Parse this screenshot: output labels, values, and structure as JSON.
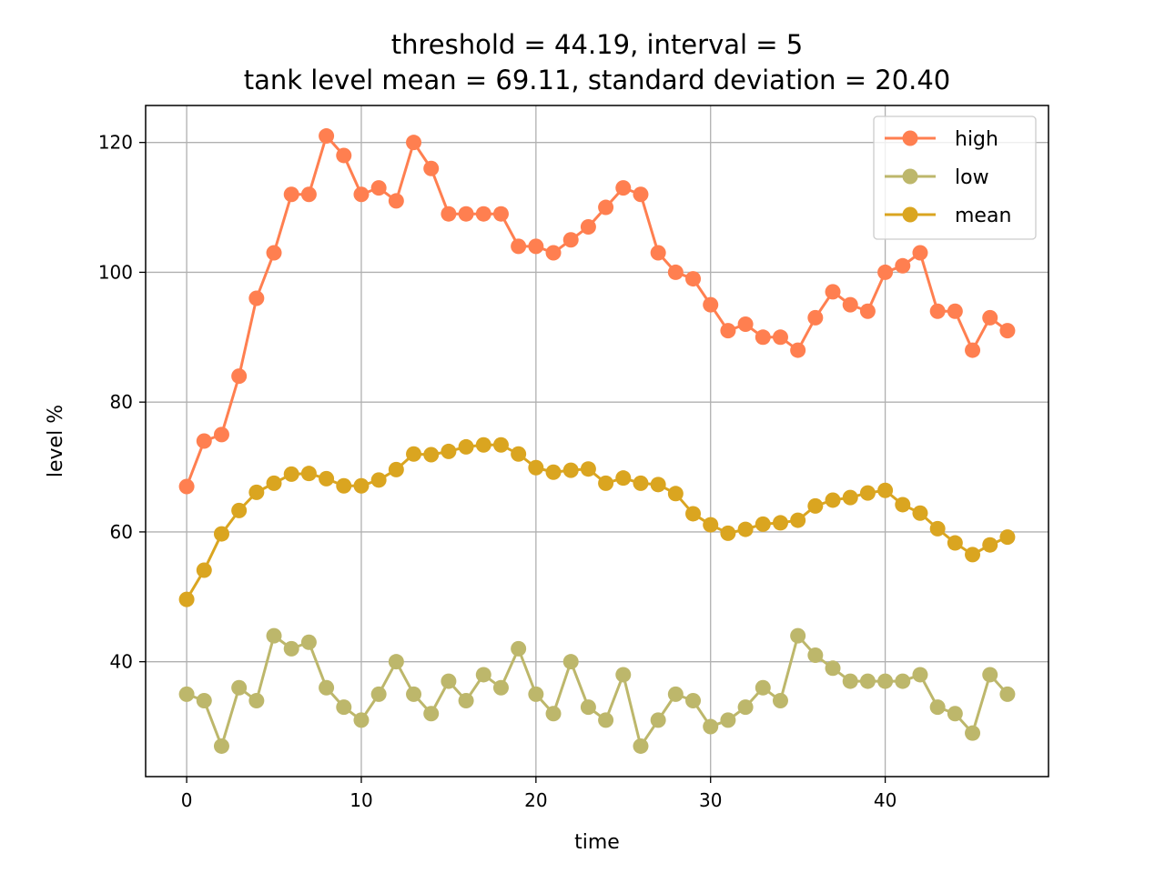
{
  "chart_data": {
    "type": "line",
    "title_line1": "threshold = 44.19, interval = 5",
    "title_line2": "tank level mean = 69.11, standard deviation = 20.40",
    "xlabel": "time",
    "ylabel": "level %",
    "xlim": [
      -2.35,
      49.35
    ],
    "ylim": [
      22.3,
      125.7
    ],
    "xticks": [
      0,
      10,
      20,
      30,
      40
    ],
    "yticks": [
      40,
      60,
      80,
      100,
      120
    ],
    "grid": true,
    "legend_position": "upper right",
    "x": [
      0,
      1,
      2,
      3,
      4,
      5,
      6,
      7,
      8,
      9,
      10,
      11,
      12,
      13,
      14,
      15,
      16,
      17,
      18,
      19,
      20,
      21,
      22,
      23,
      24,
      25,
      26,
      27,
      28,
      29,
      30,
      31,
      32,
      33,
      34,
      35,
      36,
      37,
      38,
      39,
      40,
      41,
      42,
      43,
      44,
      45,
      46,
      47
    ],
    "series": [
      {
        "name": "high",
        "color": "#ff7f50",
        "values": [
          67,
          74,
          75,
          84,
          96,
          103,
          112,
          112,
          121,
          118,
          112,
          113,
          111,
          120,
          116,
          109,
          109,
          109,
          109,
          104,
          104,
          103,
          105,
          107,
          110,
          113,
          112,
          103,
          100,
          99,
          95,
          91,
          92,
          90,
          90,
          88,
          93,
          97,
          95,
          94,
          100,
          101,
          103,
          94,
          94,
          88,
          93,
          91
        ]
      },
      {
        "name": "low",
        "color": "#bdb76b",
        "values": [
          35,
          34,
          27,
          36,
          34,
          44,
          42,
          43,
          36,
          33,
          31,
          35,
          40,
          35,
          32,
          37,
          34,
          38,
          36,
          42,
          35,
          32,
          40,
          33,
          31,
          38,
          27,
          31,
          35,
          34,
          30,
          31,
          33,
          36,
          34,
          44,
          41,
          39,
          37,
          37,
          37,
          37,
          38,
          33,
          32,
          29,
          38,
          35
        ]
      },
      {
        "name": "mean",
        "color": "#daa520",
        "values": [
          49.6,
          54.1,
          59.7,
          63.3,
          66.1,
          67.5,
          68.9,
          69.0,
          68.2,
          67.1,
          67.1,
          68.0,
          69.6,
          72.0,
          71.9,
          72.4,
          73.1,
          73.4,
          73.4,
          72.0,
          69.9,
          69.2,
          69.5,
          69.7,
          67.5,
          68.3,
          67.5,
          67.3,
          65.9,
          62.8,
          61.1,
          59.8,
          60.4,
          61.2,
          61.4,
          61.8,
          64.0,
          64.9,
          65.3,
          66.0,
          66.4,
          64.2,
          62.9,
          60.5,
          58.3,
          56.5,
          58.0,
          59.2
        ]
      }
    ]
  }
}
